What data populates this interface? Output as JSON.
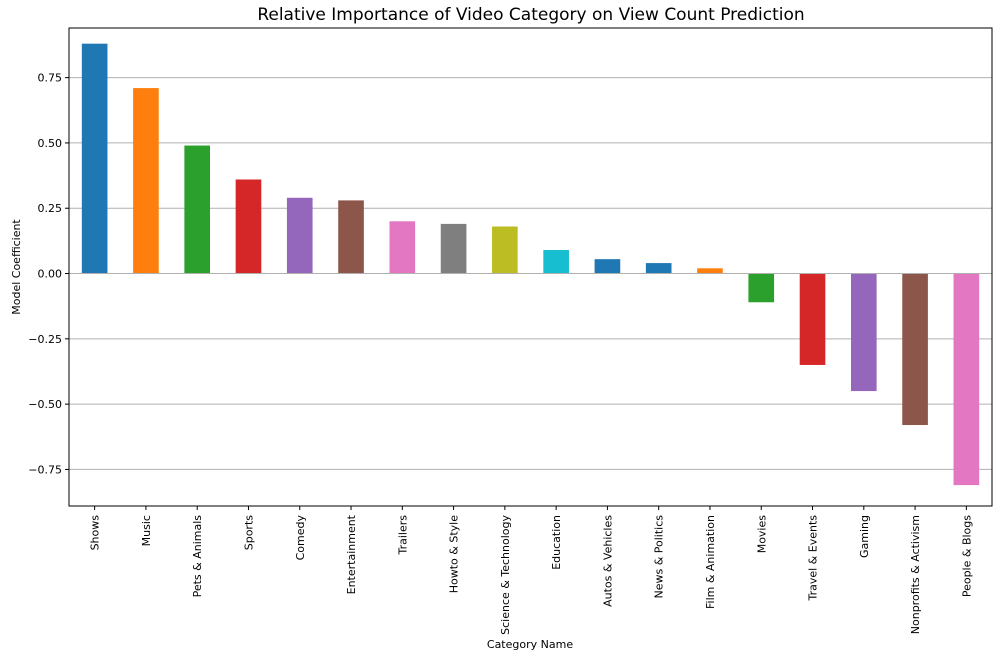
{
  "chart_data": {
    "type": "bar",
    "title": "Relative Importance of Video Category on View Count Prediction",
    "xlabel": "Category Name",
    "ylabel": "Model Coefficient",
    "ylim": [
      -0.89,
      0.94
    ],
    "yticks": [
      -0.75,
      -0.5,
      -0.25,
      0.0,
      0.25,
      0.5,
      0.75
    ],
    "ytick_labels": [
      "−0.75",
      "−0.50",
      "−0.25",
      "0.00",
      "0.25",
      "0.50",
      "0.75"
    ],
    "grid": "horizontal",
    "categories": [
      "Shows",
      "Music",
      "Pets & Animals",
      "Sports",
      "Comedy",
      "Entertainment",
      "Trailers",
      "Howto & Style",
      "Science & Technology",
      "Education",
      "Autos & Vehicles",
      "News & Politics",
      "Film & Animation",
      "Movies",
      "Travel & Events",
      "Gaming",
      "Nonprofits & Activism",
      "People & Blogs"
    ],
    "values": [
      0.88,
      0.71,
      0.49,
      0.36,
      0.29,
      0.28,
      0.2,
      0.19,
      0.18,
      0.09,
      0.055,
      0.04,
      0.02,
      -0.11,
      -0.35,
      -0.45,
      -0.58,
      -0.81
    ],
    "colors": [
      "#1f77b4",
      "#ff7f0e",
      "#2ca02c",
      "#d62728",
      "#9467bd",
      "#8c564b",
      "#e377c2",
      "#7f7f7f",
      "#bcbd22",
      "#17becf",
      "#1f77b4",
      "#1f77b4",
      "#ff7f0e",
      "#2ca02c",
      "#d62728",
      "#9467bd",
      "#8c564b",
      "#e377c2"
    ]
  }
}
